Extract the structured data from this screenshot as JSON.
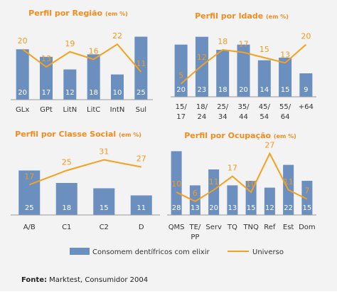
{
  "colors": {
    "bar": "#6b8fbf",
    "line": "#f5a11d",
    "title": "#f28c1e",
    "background": "#f3f3f3"
  },
  "legend": {
    "bars_label": "Consomem dentífricos com elixir",
    "line_label": "Universo"
  },
  "source": {
    "prefix": "Fonte:",
    "text": " Marktest, Consumidor 2004"
  },
  "chart_data": [
    {
      "type": "bar+line",
      "title": "Perfil por Região",
      "unit": "(em %)",
      "categories": [
        "GLx",
        "GPt",
        "LitN",
        "LitC",
        "IntN",
        "Sul"
      ],
      "series": [
        {
          "name": "Consomem dentífricos com elixir",
          "type": "bar",
          "values": [
            20,
            17,
            12,
            18,
            10,
            25
          ]
        },
        {
          "name": "Universo",
          "type": "line",
          "values": [
            20,
            13,
            19,
            16,
            22,
            11
          ]
        }
      ],
      "ylim": [
        0,
        26
      ]
    },
    {
      "type": "bar+line",
      "title": "Perfil por Idade",
      "unit": "(em %)",
      "categories": [
        [
          "15/",
          "17"
        ],
        [
          "18/",
          "24"
        ],
        [
          "25/",
          "34"
        ],
        [
          "35/",
          "44"
        ],
        [
          "45/",
          "54"
        ],
        [
          "55/",
          "64"
        ],
        [
          "+64"
        ]
      ],
      "series": [
        {
          "name": "Consomem dentífricos com elixir",
          "type": "bar",
          "values": [
            20,
            23,
            18,
            20,
            14,
            15,
            9
          ]
        },
        {
          "name": "Universo",
          "type": "line",
          "values": [
            5,
            12,
            18,
            17,
            15,
            13,
            20
          ]
        }
      ],
      "ylim": [
        0,
        24
      ]
    },
    {
      "type": "bar+line",
      "title": "Perfil por Classe Social",
      "unit": "(em %)",
      "categories": [
        "A/B",
        "C1",
        "C2",
        "D"
      ],
      "series": [
        {
          "name": "Consomem dentífricos com elixir",
          "type": "bar",
          "values": [
            25,
            18,
            15,
            11
          ]
        },
        {
          "name": "Universo",
          "type": "line",
          "values": [
            17,
            25,
            31,
            27
          ]
        }
      ],
      "ylim": [
        0,
        36
      ]
    },
    {
      "type": "bar+line",
      "title": "Perfil por Ocupação",
      "unit": "(em %)",
      "categories": [
        "QMS",
        [
          "TE/",
          "PP"
        ],
        "Serv",
        "TQ",
        "TNQ",
        "Ref",
        "Est",
        "Dom"
      ],
      "series": [
        {
          "name": "Consomem dentífricos com elixir",
          "type": "bar",
          "values": [
            28,
            13,
            20,
            13,
            15,
            12,
            22,
            15
          ]
        },
        {
          "name": "Universo",
          "type": "line",
          "values": [
            10,
            6,
            11,
            17,
            10,
            27,
            11,
            7
          ]
        }
      ],
      "ylim": [
        0,
        30
      ]
    }
  ]
}
